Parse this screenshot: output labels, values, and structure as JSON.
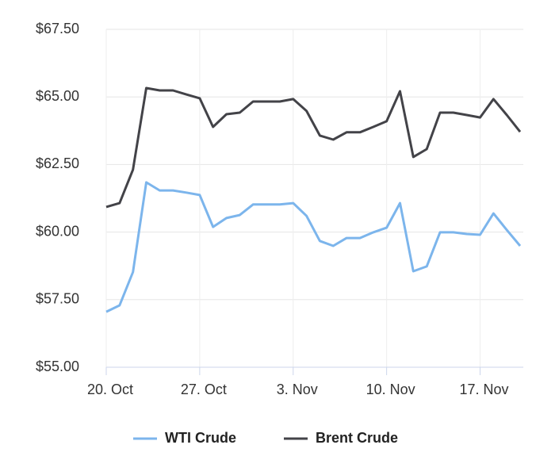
{
  "chart_data": {
    "type": "line",
    "categories": [
      "20. Oct",
      null,
      null,
      null,
      null,
      null,
      null,
      "27. Oct",
      null,
      null,
      null,
      null,
      null,
      null,
      "3. Nov",
      null,
      null,
      null,
      null,
      null,
      null,
      "10. Nov",
      null,
      null,
      null,
      null,
      null,
      null,
      "17. Nov",
      null,
      null,
      null
    ],
    "series": [
      {
        "name": "WTI Crude",
        "color": "#7cb5ec",
        "values": [
          57.05,
          57.29,
          58.52,
          61.84,
          61.54,
          61.54,
          61.46,
          61.37,
          60.19,
          60.52,
          60.63,
          61.02,
          61.02,
          61.02,
          61.07,
          60.6,
          59.67,
          59.49,
          59.78,
          59.78,
          59.99,
          60.16,
          61.07,
          58.55,
          58.73,
          59.99,
          59.99,
          59.93,
          59.9,
          60.69,
          60.08,
          59.49
        ]
      },
      {
        "name": "Brent Crude",
        "color": "#434348",
        "values": [
          60.93,
          61.07,
          62.31,
          65.33,
          65.24,
          65.24,
          65.09,
          64.95,
          63.89,
          64.36,
          64.42,
          64.83,
          64.83,
          64.83,
          64.92,
          64.48,
          63.57,
          63.42,
          63.69,
          63.69,
          63.89,
          64.1,
          65.21,
          62.78,
          63.07,
          64.42,
          64.42,
          64.33,
          64.24,
          64.92,
          64.33,
          63.71
        ]
      }
    ],
    "ylim": [
      55,
      67.5
    ],
    "yticks": [
      {
        "value": 55,
        "label": "$55.00"
      },
      {
        "value": 57.5,
        "label": "$57.50"
      },
      {
        "value": 60,
        "label": "$60.00"
      },
      {
        "value": 62.5,
        "label": "$62.50"
      },
      {
        "value": 65,
        "label": "$65.00"
      },
      {
        "value": 67.5,
        "label": "$67.50"
      }
    ],
    "grid": true,
    "legend": "bottom"
  }
}
